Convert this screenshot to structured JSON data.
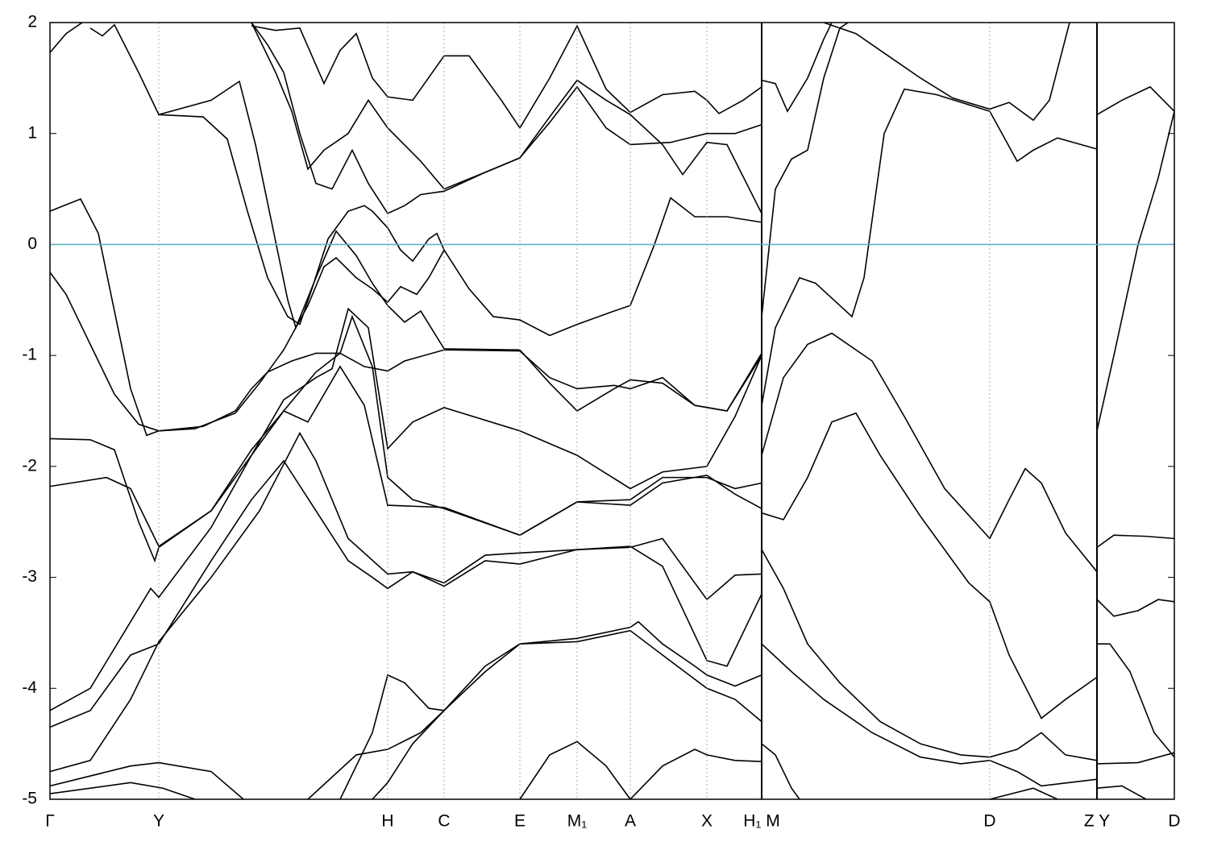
{
  "chart_data": {
    "type": "line",
    "xlim": [
      0,
      13.95
    ],
    "ylim": [
      -5,
      2
    ],
    "yticks": [
      -5,
      -4,
      -3,
      -2,
      -1,
      0,
      1,
      2
    ],
    "xticks": [
      {
        "value": 0,
        "label": "Γ"
      },
      {
        "value": 1.35,
        "label": "Y"
      },
      {
        "value": 4.19,
        "label": "H"
      },
      {
        "value": 4.89,
        "label": "C"
      },
      {
        "value": 5.83,
        "label": "E"
      },
      {
        "value": 6.54,
        "label": "M₁"
      },
      {
        "value": 7.2,
        "label": "A"
      },
      {
        "value": 8.15,
        "label": "X"
      },
      {
        "value": 8.83,
        "label": "H₁ M"
      },
      {
        "value": 11.66,
        "label": "D"
      },
      {
        "value": 12.99,
        "label": "Z Y"
      },
      {
        "value": 13.95,
        "label": "D"
      }
    ],
    "xbreaks": [
      8.83,
      12.99
    ],
    "grid": true,
    "line_color": "#000000",
    "fermi_level": 0,
    "fermi_color": "#5fb4c8",
    "series": [
      {
        "x": [
          0,
          0.2,
          0.5,
          0.8,
          1.1,
          1.35,
          1.8,
          2.3,
          2.6,
          2.9,
          3.2,
          3.4,
          3.55,
          3.8,
          4.0,
          4.19,
          4.35,
          4.55,
          4.7,
          4.89,
          5.2,
          5.5,
          5.83,
          6.2,
          6.54,
          7.0,
          7.2,
          7.5,
          7.7,
          8.0,
          8.4,
          8.83
        ],
        "values": [
          -0.25,
          -0.45,
          -0.9,
          -1.35,
          -1.62,
          -1.68,
          -1.66,
          -1.52,
          -1.25,
          -0.95,
          -0.55,
          -0.2,
          -0.12,
          -0.3,
          -0.4,
          -0.52,
          -0.38,
          -0.45,
          -0.3,
          -0.05,
          -0.4,
          -0.65,
          -0.68,
          -0.82,
          -0.72,
          -0.6,
          -0.55,
          0.0,
          0.42,
          0.25,
          0.25,
          0.2
        ]
      },
      {
        "x": [
          0,
          0.38,
          0.6,
          0.8,
          1.0,
          1.2,
          1.35,
          1.9,
          2.3,
          2.5,
          2.7,
          3.0,
          3.3,
          3.6,
          3.9,
          4.19,
          4.4,
          4.89,
          5.83,
          6.2,
          6.54,
          7.0,
          7.2,
          7.6,
          8.0,
          8.4,
          8.83
        ],
        "values": [
          0.3,
          0.41,
          0.1,
          -0.6,
          -1.3,
          -1.72,
          -1.68,
          -1.64,
          -1.5,
          -1.3,
          -1.15,
          -1.05,
          -0.98,
          -0.98,
          -1.1,
          -1.14,
          -1.05,
          -0.95,
          -0.96,
          -1.2,
          -1.3,
          -1.27,
          -1.3,
          -1.2,
          -1.45,
          -1.5,
          -0.98
        ]
      },
      {
        "x": [
          0,
          0.2,
          0.4
        ],
        "values": [
          1.73,
          1.9,
          2.0
        ]
      },
      {
        "x": [
          0.5,
          0.65,
          0.8,
          1.1,
          1.35,
          2.0,
          2.35,
          2.55,
          2.75,
          2.95,
          3.05,
          3.3,
          3.55,
          3.8,
          4.0,
          4.19,
          4.4,
          4.6,
          4.89,
          5.83,
          6.2,
          6.54,
          7.0,
          7.2,
          7.6,
          8.0,
          8.4,
          8.83
        ],
        "values": [
          1.95,
          1.88,
          1.98,
          1.55,
          1.17,
          1.3,
          1.47,
          0.9,
          0.2,
          -0.5,
          -0.75,
          -0.3,
          0.12,
          -0.1,
          -0.35,
          -0.55,
          -0.7,
          -0.6,
          -0.94,
          -0.95,
          -1.25,
          -1.5,
          -1.3,
          -1.22,
          -1.25,
          -1.45,
          -1.5,
          -1.0
        ]
      },
      {
        "x": [
          1.35,
          1.9,
          2.2,
          2.45,
          2.7,
          2.95,
          3.1,
          3.25,
          3.45,
          3.7,
          3.9,
          4.0,
          4.19,
          4.35,
          4.5,
          4.7,
          4.8,
          4.89
        ],
        "values": [
          1.17,
          1.15,
          0.95,
          0.3,
          -0.3,
          -0.65,
          -0.72,
          -0.4,
          0.05,
          0.3,
          0.35,
          0.3,
          0.15,
          -0.05,
          -0.15,
          0.05,
          0.1,
          -0.05
        ]
      },
      {
        "x": [
          2.5,
          2.8,
          3.0,
          3.2,
          3.4,
          3.7,
          3.95,
          4.19,
          4.6,
          4.89,
          5.4,
          5.83,
          6.2,
          6.54,
          6.9,
          7.2,
          7.7,
          8.15,
          8.5,
          8.83
        ],
        "values": [
          2.0,
          1.55,
          1.2,
          0.68,
          0.85,
          1.0,
          1.3,
          1.05,
          0.75,
          0.5,
          0.65,
          0.78,
          1.1,
          1.42,
          1.05,
          0.9,
          0.92,
          1.0,
          1.0,
          1.08
        ]
      },
      {
        "x": [
          2.5,
          2.7,
          2.9,
          3.1,
          3.3,
          3.5,
          3.75,
          3.95,
          4.19,
          4.4,
          4.6,
          4.89,
          5.4,
          5.83,
          6.2,
          6.54,
          6.9,
          7.2,
          7.6,
          7.85,
          8.15,
          8.4,
          8.83
        ],
        "values": [
          2.0,
          1.8,
          1.55,
          1.0,
          0.55,
          0.5,
          0.85,
          0.55,
          0.28,
          0.35,
          0.45,
          0.48,
          0.65,
          0.78,
          1.15,
          1.48,
          1.3,
          1.17,
          0.9,
          0.63,
          0.92,
          0.9,
          0.28
        ]
      },
      {
        "x": [
          2.5,
          2.8,
          3.1,
          3.4,
          3.6,
          3.8,
          4.0,
          4.19,
          4.5,
          4.89,
          5.2,
          5.6,
          5.83,
          6.2,
          6.54,
          6.9,
          7.2,
          7.6,
          8.0,
          8.15,
          8.3,
          8.6,
          8.83
        ],
        "values": [
          1.97,
          1.93,
          1.95,
          1.45,
          1.75,
          1.9,
          1.5,
          1.33,
          1.3,
          1.7,
          1.7,
          1.3,
          1.05,
          1.5,
          1.97,
          1.4,
          1.19,
          1.35,
          1.38,
          1.3,
          1.18,
          1.3,
          1.42
        ]
      },
      {
        "x": [
          0,
          0.5,
          0.8,
          1.1,
          1.3,
          1.35,
          2.0,
          2.5,
          2.9,
          3.3,
          3.5,
          3.7,
          3.95,
          4.19,
          4.5,
          4.89,
          5.83,
          6.54,
          7.2,
          7.6,
          8.15,
          8.5,
          8.83
        ],
        "values": [
          -1.75,
          -1.76,
          -1.85,
          -2.5,
          -2.85,
          -2.73,
          -2.4,
          -1.9,
          -1.4,
          -1.2,
          -1.12,
          -0.58,
          -0.75,
          -1.84,
          -1.6,
          -1.47,
          -1.68,
          -1.9,
          -2.2,
          -2.05,
          -2.0,
          -1.55,
          -1.0
        ]
      },
      {
        "x": [
          0,
          0.7,
          1.0,
          1.35,
          2.0,
          2.5,
          2.9,
          3.3,
          3.6,
          3.75,
          4.0,
          4.19,
          4.5,
          4.89,
          5.83,
          6.54,
          7.2,
          7.6,
          8.15,
          8.5,
          8.83
        ],
        "values": [
          -2.18,
          -2.1,
          -2.2,
          -2.72,
          -2.4,
          -1.85,
          -1.5,
          -1.15,
          -0.98,
          -0.65,
          -1.1,
          -2.1,
          -2.3,
          -2.38,
          -2.62,
          -2.32,
          -2.35,
          -2.15,
          -2.08,
          -2.25,
          -2.38
        ]
      },
      {
        "x": [
          0,
          0.5,
          1.0,
          1.25,
          1.35,
          2.0,
          2.5,
          2.9,
          3.2,
          3.6,
          3.9,
          4.19,
          4.89,
          5.83,
          6.54,
          7.2,
          7.6,
          8.15,
          8.5,
          8.83
        ],
        "values": [
          -4.2,
          -4.0,
          -3.4,
          -3.1,
          -3.18,
          -2.55,
          -1.9,
          -1.5,
          -1.6,
          -1.1,
          -1.45,
          -2.35,
          -2.37,
          -2.62,
          -2.32,
          -2.3,
          -2.1,
          -2.1,
          -2.2,
          -2.15
        ]
      },
      {
        "x": [
          0,
          0.5,
          1.0,
          1.35,
          2.0,
          2.5,
          2.9,
          3.3,
          3.7,
          4.0,
          4.19,
          4.5,
          4.89,
          5.4,
          5.83,
          6.54,
          7.2,
          7.6,
          8.15,
          8.5,
          8.83
        ],
        "values": [
          -4.35,
          -4.2,
          -3.7,
          -3.6,
          -2.85,
          -2.3,
          -1.95,
          -2.4,
          -2.85,
          -3.0,
          -3.1,
          -2.95,
          -3.08,
          -2.85,
          -2.88,
          -2.75,
          -2.73,
          -2.65,
          -3.2,
          -2.98,
          -2.97
        ]
      },
      {
        "x": [
          0,
          0.5,
          1.0,
          1.35,
          2.0,
          2.6,
          3.1,
          3.3,
          3.7,
          4.19,
          4.5,
          4.89,
          5.4,
          5.83,
          6.54,
          7.2,
          7.6,
          8.15,
          8.4,
          8.83
        ],
        "values": [
          -4.75,
          -4.65,
          -4.1,
          -3.58,
          -3.0,
          -2.4,
          -1.7,
          -1.95,
          -2.65,
          -2.97,
          -2.95,
          -3.05,
          -2.8,
          -2.78,
          -2.75,
          -2.72,
          -2.9,
          -3.75,
          -3.8,
          -3.15
        ]
      },
      {
        "x": [
          0,
          1.0,
          1.35,
          2.0,
          2.4
        ],
        "values": [
          -4.88,
          -4.7,
          -4.67,
          -4.75,
          -5.0
        ]
      },
      {
        "x": [
          0,
          1.0,
          1.4,
          1.8
        ],
        "values": [
          -4.95,
          -4.85,
          -4.9,
          -5.0
        ]
      },
      {
        "x": [
          3.2,
          3.8,
          4.19,
          4.6,
          4.89,
          5.4,
          5.83,
          6.54,
          7.2,
          7.6,
          8.15,
          8.5,
          8.83
        ],
        "values": [
          -5.0,
          -4.6,
          -4.55,
          -4.4,
          -4.2,
          -3.8,
          -3.6,
          -3.58,
          -3.48,
          -3.7,
          -4.0,
          -4.1,
          -4.3
        ]
      },
      {
        "x": [
          4.0,
          4.19,
          4.5,
          4.89,
          5.4,
          5.83,
          6.54,
          7.2,
          7.3,
          7.6,
          8.0,
          8.15,
          8.5,
          8.83
        ],
        "values": [
          -5.0,
          -4.85,
          -4.5,
          -4.2,
          -3.85,
          -3.6,
          -3.55,
          -3.45,
          -3.4,
          -3.6,
          -3.8,
          -3.88,
          -3.98,
          -3.88
        ]
      },
      {
        "x": [
          3.6,
          4.0,
          4.19,
          4.4,
          4.7,
          4.89
        ],
        "values": [
          -5.0,
          -4.4,
          -3.88,
          -3.95,
          -4.18,
          -4.2
        ]
      },
      {
        "x": [
          5.83,
          6.2,
          6.54,
          6.9,
          7.2
        ],
        "values": [
          -5.0,
          -4.6,
          -4.48,
          -4.7,
          -5.0
        ]
      },
      {
        "x": [
          7.2,
          7.6,
          8.0,
          8.15,
          8.5,
          8.83
        ],
        "values": [
          -5.0,
          -4.7,
          -4.55,
          -4.6,
          -4.65,
          -4.66
        ]
      },
      {
        "x": [
          8.83,
          9.0,
          9.2,
          9.4,
          9.6,
          9.8,
          9.9
        ],
        "values": [
          -0.65,
          0.5,
          0.77,
          0.85,
          1.5,
          1.95,
          2.0
        ]
      },
      {
        "x": [
          9.6,
          10.0,
          10.4,
          10.8,
          11.2,
          11.66,
          11.9,
          12.2,
          12.4,
          12.65
        ],
        "values": [
          2.0,
          1.9,
          1.7,
          1.5,
          1.32,
          1.22,
          1.28,
          1.12,
          1.3,
          2.0
        ]
      },
      {
        "x": [
          8.83,
          9.0,
          9.3,
          9.5,
          9.8,
          9.95,
          10.1,
          10.35,
          10.6,
          11.0,
          11.66,
          12.0,
          12.2,
          12.5,
          12.99
        ],
        "values": [
          -1.45,
          -0.75,
          -0.3,
          -0.35,
          -0.55,
          -0.65,
          -0.3,
          1.0,
          1.4,
          1.35,
          1.2,
          0.75,
          0.85,
          0.96,
          0.86
        ]
      },
      {
        "x": [
          8.83,
          9.1,
          9.4,
          9.7,
          10.2,
          10.6,
          11.1,
          11.66,
          11.9,
          12.1,
          12.3,
          12.6,
          12.99
        ],
        "values": [
          -1.9,
          -1.2,
          -0.9,
          -0.8,
          -1.05,
          -1.55,
          -2.2,
          -2.65,
          -2.3,
          -2.02,
          -2.15,
          -2.6,
          -2.95
        ]
      },
      {
        "x": [
          8.83,
          9.1,
          9.4,
          9.7,
          10.0,
          10.3,
          10.8,
          11.4,
          11.66,
          11.9,
          12.3,
          12.6,
          12.99
        ],
        "values": [
          -2.42,
          -2.48,
          -2.1,
          -1.6,
          -1.52,
          -1.9,
          -2.45,
          -3.05,
          -3.22,
          -3.7,
          -4.27,
          -4.1,
          -3.9
        ]
      },
      {
        "x": [
          8.83,
          9.1,
          9.4,
          9.8,
          10.3,
          10.8,
          11.3,
          11.66,
          12.0,
          12.3,
          12.6,
          12.99
        ],
        "values": [
          -2.75,
          -3.1,
          -3.6,
          -3.95,
          -4.3,
          -4.5,
          -4.6,
          -4.62,
          -4.55,
          -4.4,
          -4.6,
          -4.65
        ]
      },
      {
        "x": [
          8.83,
          9.2,
          9.6,
          10.2,
          10.8,
          11.3,
          11.66,
          12.0,
          12.3,
          12.99
        ],
        "values": [
          -3.6,
          -3.85,
          -4.1,
          -4.4,
          -4.62,
          -4.68,
          -4.65,
          -4.75,
          -4.88,
          -4.82
        ]
      },
      {
        "x": [
          8.83,
          9.0,
          9.2,
          9.3
        ],
        "values": [
          -4.5,
          -4.6,
          -4.9,
          -5.0
        ]
      },
      {
        "x": [
          8.83,
          9.0,
          9.15,
          9.4,
          9.6,
          9.7
        ],
        "values": [
          1.48,
          1.45,
          1.2,
          1.5,
          1.85,
          2.0
        ]
      },
      {
        "x": [
          11.66,
          12.2,
          12.5
        ],
        "values": [
          -5.0,
          -4.9,
          -5.0
        ]
      },
      {
        "x": [
          12.99,
          13.3,
          13.65,
          13.95
        ],
        "values": [
          1.17,
          1.3,
          1.42,
          1.2
        ]
      },
      {
        "x": [
          12.99,
          13.2,
          13.5,
          13.75,
          13.95
        ],
        "values": [
          -1.68,
          -1.0,
          0.0,
          0.6,
          1.2
        ]
      },
      {
        "x": [
          12.99,
          13.2,
          13.6,
          13.95
        ],
        "values": [
          -2.73,
          -2.62,
          -2.63,
          -2.65
        ]
      },
      {
        "x": [
          12.99,
          13.2,
          13.5,
          13.75,
          13.95
        ],
        "values": [
          -3.2,
          -3.35,
          -3.3,
          -3.2,
          -3.22
        ]
      },
      {
        "x": [
          12.99,
          13.15,
          13.4,
          13.7,
          13.95
        ],
        "values": [
          -3.6,
          -3.6,
          -3.85,
          -4.4,
          -4.62
        ]
      },
      {
        "x": [
          12.99,
          13.5,
          13.95
        ],
        "values": [
          -4.68,
          -4.67,
          -4.58
        ]
      },
      {
        "x": [
          12.99,
          13.3,
          13.6
        ],
        "values": [
          -4.9,
          -4.88,
          -5.0
        ]
      }
    ]
  }
}
